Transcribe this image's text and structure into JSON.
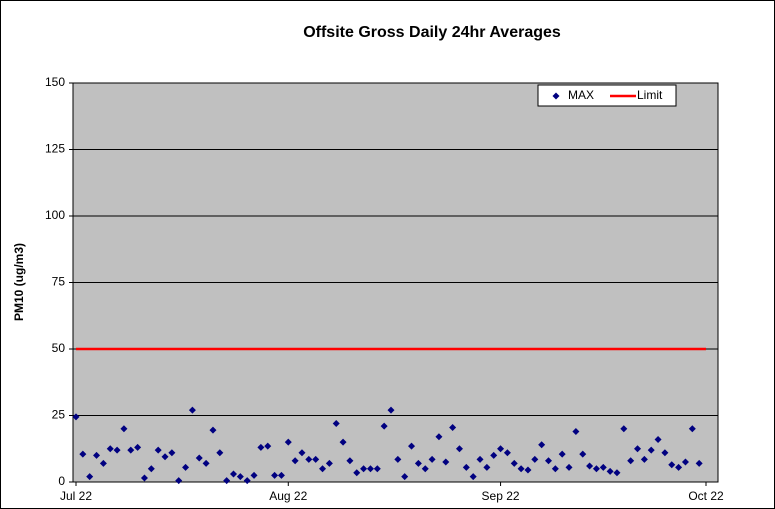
{
  "chart_data": {
    "type": "line",
    "title": "Offsite Gross  Daily 24hr Averages",
    "ylabel": "PM10 (ug/m3)",
    "categories": [
      "Jul 22",
      null,
      null,
      null,
      null,
      null,
      null,
      null,
      null,
      null,
      null,
      null,
      null,
      null,
      null,
      null,
      null,
      null,
      null,
      null,
      null,
      null,
      null,
      null,
      null,
      null,
      null,
      null,
      null,
      null,
      null,
      "Aug 22",
      null,
      null,
      null,
      null,
      null,
      null,
      null,
      null,
      null,
      null,
      null,
      null,
      null,
      null,
      null,
      null,
      null,
      null,
      null,
      null,
      null,
      null,
      null,
      null,
      null,
      null,
      null,
      null,
      null,
      null,
      "Sep 22",
      null,
      null,
      null,
      null,
      null,
      null,
      null,
      null,
      null,
      null,
      null,
      null,
      null,
      null,
      null,
      null,
      null,
      null,
      null,
      null,
      null,
      null,
      null,
      null,
      null,
      null,
      null,
      null,
      null,
      "Oct 22"
    ],
    "series": [
      {
        "name": "MAX",
        "color": "#000080",
        "style": "markers",
        "values": [
          24.5,
          10.5,
          2,
          10,
          7,
          12.5,
          12,
          20,
          12,
          13,
          1.5,
          5,
          12,
          9.5,
          11,
          0.5,
          5.5,
          27,
          9,
          7,
          19.5,
          11,
          0.5,
          3,
          2,
          0.5,
          2.5,
          13,
          13.5,
          2.5,
          2.5,
          15,
          8,
          11,
          8.5,
          8.5,
          5,
          7,
          22,
          15,
          8,
          3.5,
          5,
          5,
          5,
          21,
          27,
          8.5,
          2,
          13.5,
          7,
          5,
          8.5,
          17,
          7.5,
          20.5,
          12.5,
          5.5,
          2,
          8.5,
          5.5,
          10,
          12.5,
          11,
          7,
          5,
          4.5,
          8.5,
          14,
          8,
          5,
          10.5,
          5.5,
          19,
          10.5,
          6,
          5,
          5.5,
          4,
          3.5,
          20,
          8,
          12.5,
          8.5,
          12,
          16,
          11,
          6.5,
          5.5,
          7.5,
          20,
          7,
          null
        ]
      },
      {
        "name": "Limit",
        "color": "#ff0000",
        "style": "line",
        "values": [
          50,
          50,
          50,
          50,
          50,
          50,
          50,
          50,
          50,
          50,
          50,
          50,
          50,
          50,
          50,
          50,
          50,
          50,
          50,
          50,
          50,
          50,
          50,
          50,
          50,
          50,
          50,
          50,
          50,
          50,
          50,
          50,
          50,
          50,
          50,
          50,
          50,
          50,
          50,
          50,
          50,
          50,
          50,
          50,
          50,
          50,
          50,
          50,
          50,
          50,
          50,
          50,
          50,
          50,
          50,
          50,
          50,
          50,
          50,
          50,
          50,
          50,
          50,
          50,
          50,
          50,
          50,
          50,
          50,
          50,
          50,
          50,
          50,
          50,
          50,
          50,
          50,
          50,
          50,
          50,
          50,
          50,
          50,
          50,
          50,
          50,
          50,
          50,
          50,
          50,
          50,
          50,
          50
        ]
      }
    ],
    "ylim": [
      0,
      150
    ],
    "yticks": [
      0,
      25,
      50,
      75,
      100,
      125,
      150
    ],
    "grid": true,
    "legend": "top-right"
  }
}
